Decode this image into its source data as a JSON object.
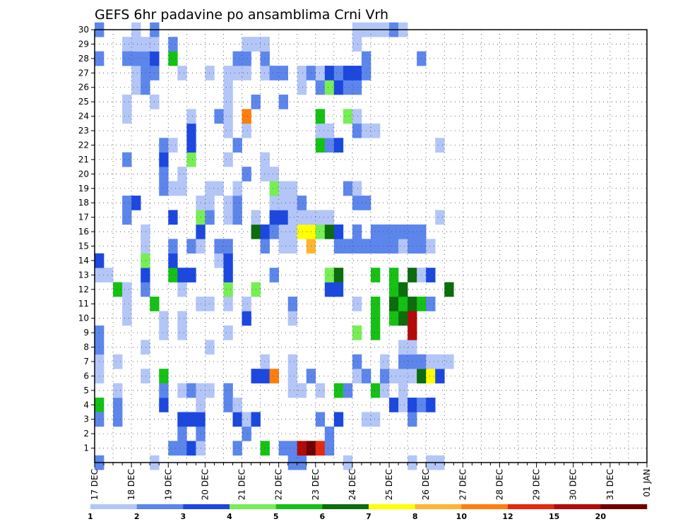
{
  "chart_data": {
    "type": "heatmap",
    "title": "GEFS 6hr padavine po ansamblima Crni Vrh",
    "xlabel": "",
    "ylabel": "",
    "x_tick_labels": [
      "17 DEC",
      "18 DEC",
      "19 DEC",
      "20 DEC",
      "21 DEC",
      "22 DEC",
      "23 DEC",
      "24 DEC",
      "25 DEC",
      "26 DEC",
      "27 DEC",
      "28 DEC",
      "29 DEC",
      "30 DEC",
      "31 DEC",
      "01 JAN"
    ],
    "y_tick_labels": [
      "1",
      "2",
      "3",
      "4",
      "5",
      "6",
      "7",
      "8",
      "9",
      "10",
      "11",
      "12",
      "13",
      "14",
      "15",
      "16",
      "17",
      "18",
      "19",
      "20",
      "21",
      "22",
      "23",
      "24",
      "25",
      "26",
      "27",
      "28",
      "29",
      "30"
    ],
    "time_steps_per_day": 4,
    "ensemble_range": [
      0,
      30
    ],
    "grid": true,
    "colorbar": {
      "levels": [
        "1",
        "2",
        "3",
        "4",
        "5",
        "6",
        "7",
        "8",
        "10",
        "12",
        "15",
        "20"
      ],
      "colors": [
        "#b3c6f7",
        "#5c86ec",
        "#1c48e0",
        "#77ee55",
        "#14c114",
        "#0b6d0b",
        "#ffff00",
        "#ffb432",
        "#ff7d0e",
        "#e6280f",
        "#b40a0a",
        "#6e0000"
      ]
    },
    "cells": [
      [
        0,
        30,
        1
      ],
      [
        6,
        11,
        4
      ],
      [
        0,
        7,
        0
      ],
      [
        0,
        4,
        4
      ],
      [
        0,
        13,
        0
      ],
      [
        0,
        14,
        2
      ],
      [
        0,
        28,
        1
      ],
      [
        0,
        3,
        1
      ],
      [
        0,
        0,
        1
      ],
      [
        0,
        6,
        0
      ],
      [
        0,
        8,
        1
      ],
      [
        0,
        9,
        1
      ],
      [
        1,
        13,
        0
      ],
      [
        2,
        3,
        1
      ],
      [
        2,
        4,
        1
      ],
      [
        2,
        5,
        0
      ],
      [
        2,
        7,
        0
      ],
      [
        2,
        12,
        4
      ],
      [
        3,
        10,
        0
      ],
      [
        3,
        11,
        0
      ],
      [
        3,
        12,
        0
      ],
      [
        3,
        17,
        1
      ],
      [
        3,
        18,
        1
      ],
      [
        3,
        21,
        1
      ],
      [
        3,
        24,
        0
      ],
      [
        3,
        25,
        0
      ],
      [
        3,
        29,
        0
      ],
      [
        3,
        28,
        1
      ],
      [
        4,
        18,
        2
      ],
      [
        4,
        26,
        0
      ],
      [
        4,
        27,
        0
      ],
      [
        4,
        28,
        1
      ],
      [
        4,
        29,
        0
      ],
      [
        4,
        30,
        0
      ],
      [
        5,
        6,
        0
      ],
      [
        5,
        8,
        0
      ],
      [
        5,
        12,
        1
      ],
      [
        5,
        13,
        2
      ],
      [
        5,
        14,
        3
      ],
      [
        5,
        15,
        0
      ],
      [
        5,
        16,
        0
      ],
      [
        5,
        26,
        1
      ],
      [
        5,
        27,
        1
      ],
      [
        5,
        28,
        1
      ],
      [
        5,
        29,
        0
      ],
      [
        6,
        0,
        0
      ],
      [
        6,
        25,
        0
      ],
      [
        6,
        27,
        1
      ],
      [
        6,
        28,
        2
      ],
      [
        6,
        29,
        0
      ],
      [
        6,
        30,
        1
      ],
      [
        7,
        4,
        2
      ],
      [
        7,
        5,
        1
      ],
      [
        7,
        6,
        4
      ],
      [
        7,
        9,
        0
      ],
      [
        7,
        10,
        0
      ],
      [
        7,
        19,
        1
      ],
      [
        7,
        20,
        1
      ],
      [
        7,
        21,
        2
      ],
      [
        7,
        22,
        1
      ],
      [
        8,
        1,
        1
      ],
      [
        8,
        13,
        4
      ],
      [
        8,
        14,
        2
      ],
      [
        8,
        15,
        1
      ],
      [
        8,
        17,
        2
      ],
      [
        8,
        19,
        0
      ],
      [
        8,
        22,
        0
      ],
      [
        8,
        28,
        4
      ],
      [
        8,
        29,
        1
      ],
      [
        9,
        1,
        1
      ],
      [
        9,
        2,
        1
      ],
      [
        9,
        3,
        2
      ],
      [
        9,
        5,
        0
      ],
      [
        9,
        9,
        0
      ],
      [
        9,
        10,
        0
      ],
      [
        9,
        12,
        0
      ],
      [
        9,
        13,
        2
      ],
      [
        9,
        19,
        0
      ],
      [
        9,
        20,
        0
      ],
      [
        9,
        27,
        0
      ],
      [
        10,
        1,
        2
      ],
      [
        10,
        3,
        2
      ],
      [
        10,
        5,
        1
      ],
      [
        10,
        13,
        2
      ],
      [
        10,
        15,
        1
      ],
      [
        10,
        21,
        3
      ],
      [
        10,
        22,
        2
      ],
      [
        10,
        23,
        2
      ],
      [
        10,
        24,
        0
      ],
      [
        11,
        1,
        0
      ],
      [
        11,
        2,
        1
      ],
      [
        11,
        3,
        2
      ],
      [
        11,
        4,
        0
      ],
      [
        11,
        5,
        0
      ],
      [
        11,
        11,
        0
      ],
      [
        11,
        15,
        0
      ],
      [
        11,
        16,
        2
      ],
      [
        11,
        17,
        3
      ],
      [
        11,
        18,
        0
      ],
      [
        12,
        5,
        0
      ],
      [
        12,
        8,
        0
      ],
      [
        12,
        11,
        0
      ],
      [
        12,
        17,
        1
      ],
      [
        12,
        18,
        0
      ],
      [
        12,
        19,
        0
      ],
      [
        12,
        27,
        0
      ],
      [
        13,
        14,
        0
      ],
      [
        13,
        15,
        1
      ],
      [
        13,
        19,
        0
      ],
      [
        13,
        24,
        1
      ],
      [
        14,
        4,
        1
      ],
      [
        14,
        5,
        1
      ],
      [
        14,
        9,
        0
      ],
      [
        14,
        11,
        0
      ],
      [
        14,
        12,
        3
      ],
      [
        14,
        13,
        2
      ],
      [
        14,
        14,
        2
      ],
      [
        14,
        15,
        1
      ],
      [
        14,
        17,
        0
      ],
      [
        14,
        18,
        0
      ],
      [
        14,
        21,
        0
      ],
      [
        14,
        23,
        0
      ],
      [
        14,
        24,
        0
      ],
      [
        14,
        25,
        0
      ],
      [
        14,
        26,
        0
      ],
      [
        14,
        27,
        0
      ],
      [
        15,
        1,
        1
      ],
      [
        15,
        3,
        2
      ],
      [
        15,
        4,
        0
      ],
      [
        15,
        17,
        1
      ],
      [
        15,
        18,
        1
      ],
      [
        15,
        19,
        0
      ],
      [
        15,
        22,
        1
      ],
      [
        15,
        27,
        0
      ],
      [
        15,
        28,
        1
      ],
      [
        16,
        2,
        1
      ],
      [
        16,
        3,
        0
      ],
      [
        16,
        10,
        2
      ],
      [
        16,
        11,
        0
      ],
      [
        16,
        20,
        1
      ],
      [
        16,
        23,
        0
      ],
      [
        16,
        24,
        8
      ],
      [
        16,
        27,
        0
      ],
      [
        16,
        28,
        1
      ],
      [
        16,
        29,
        0
      ],
      [
        17,
        3,
        2
      ],
      [
        17,
        6,
        2
      ],
      [
        17,
        12,
        3
      ],
      [
        17,
        16,
        5
      ],
      [
        17,
        17,
        0
      ],
      [
        17,
        25,
        1
      ],
      [
        17,
        29,
        0
      ],
      [
        18,
        1,
        4
      ],
      [
        18,
        6,
        2
      ],
      [
        18,
        7,
        0
      ],
      [
        18,
        15,
        1
      ],
      [
        18,
        16,
        2
      ],
      [
        18,
        20,
        0
      ],
      [
        18,
        21,
        0
      ],
      [
        18,
        27,
        0
      ],
      [
        18,
        28,
        1
      ],
      [
        18,
        29,
        0
      ],
      [
        19,
        6,
        8
      ],
      [
        19,
        13,
        1
      ],
      [
        19,
        16,
        1
      ],
      [
        19,
        17,
        2
      ],
      [
        19,
        18,
        0
      ],
      [
        19,
        19,
        3
      ],
      [
        19,
        20,
        0
      ],
      [
        19,
        27,
        1
      ],
      [
        20,
        1,
        1
      ],
      [
        20,
        15,
        0
      ],
      [
        20,
        16,
        0
      ],
      [
        20,
        17,
        2
      ],
      [
        20,
        18,
        0
      ],
      [
        20,
        19,
        0
      ],
      [
        20,
        25,
        1
      ],
      [
        20,
        27,
        1
      ],
      [
        21,
        0,
        1
      ],
      [
        21,
        1,
        1
      ],
      [
        21,
        5,
        0
      ],
      [
        21,
        6,
        0
      ],
      [
        21,
        7,
        0
      ],
      [
        21,
        10,
        0
      ],
      [
        21,
        11,
        1
      ],
      [
        21,
        15,
        0
      ],
      [
        21,
        16,
        0
      ],
      [
        21,
        17,
        0
      ],
      [
        21,
        18,
        0
      ],
      [
        21,
        19,
        0
      ],
      [
        22,
        0,
        1
      ],
      [
        22,
        1,
        10
      ],
      [
        22,
        5,
        0
      ],
      [
        22,
        16,
        6
      ],
      [
        22,
        17,
        0
      ],
      [
        22,
        18,
        1
      ],
      [
        22,
        26,
        0
      ],
      [
        22,
        27,
        0
      ],
      [
        23,
        1,
        11
      ],
      [
        23,
        6,
        1
      ],
      [
        23,
        15,
        7
      ],
      [
        23,
        16,
        6
      ],
      [
        23,
        17,
        0
      ],
      [
        23,
        27,
        1
      ],
      [
        24,
        1,
        9
      ],
      [
        24,
        3,
        1
      ],
      [
        24,
        5,
        0
      ],
      [
        24,
        16,
        3
      ],
      [
        24,
        17,
        0
      ],
      [
        24,
        22,
        4
      ],
      [
        24,
        23,
        0
      ],
      [
        24,
        24,
        4
      ],
      [
        24,
        26,
        1
      ],
      [
        24,
        27,
        0
      ],
      [
        25,
        1,
        1
      ],
      [
        25,
        2,
        1
      ],
      [
        25,
        12,
        2
      ],
      [
        25,
        13,
        3
      ],
      [
        25,
        16,
        5
      ],
      [
        25,
        17,
        0
      ],
      [
        25,
        22,
        1
      ],
      [
        25,
        23,
        0
      ],
      [
        25,
        26,
        3
      ],
      [
        25,
        27,
        2
      ],
      [
        26,
        3,
        2
      ],
      [
        26,
        5,
        4
      ],
      [
        26,
        12,
        2
      ],
      [
        26,
        13,
        5
      ],
      [
        26,
        15,
        1
      ],
      [
        26,
        16,
        2
      ],
      [
        26,
        22,
        2
      ],
      [
        26,
        26,
        2
      ],
      [
        26,
        27,
        1
      ],
      [
        27,
        0,
        0
      ],
      [
        27,
        5,
        1
      ],
      [
        27,
        15,
        1
      ],
      [
        27,
        19,
        1
      ],
      [
        27,
        24,
        3
      ],
      [
        27,
        26,
        1
      ],
      [
        27,
        27,
        2
      ],
      [
        28,
        6,
        0
      ],
      [
        28,
        7,
        1
      ],
      [
        28,
        9,
        3
      ],
      [
        28,
        11,
        0
      ],
      [
        28,
        15,
        1
      ],
      [
        28,
        16,
        1
      ],
      [
        28,
        18,
        1
      ],
      [
        28,
        19,
        0
      ],
      [
        28,
        23,
        1
      ],
      [
        28,
        24,
        0
      ],
      [
        28,
        26,
        1
      ],
      [
        28,
        27,
        2
      ],
      [
        28,
        29,
        0
      ],
      [
        28,
        30,
        0
      ],
      [
        29,
        3,
        0
      ],
      [
        29,
        6,
        1
      ],
      [
        29,
        15,
        1
      ],
      [
        29,
        18,
        1
      ],
      [
        29,
        23,
        0
      ],
      [
        29,
        27,
        1
      ],
      [
        29,
        28,
        1
      ],
      [
        29,
        30,
        0
      ],
      [
        30,
        3,
        0
      ],
      [
        30,
        5,
        4
      ],
      [
        30,
        9,
        4
      ],
      [
        30,
        10,
        4
      ],
      [
        30,
        11,
        4
      ],
      [
        30,
        13,
        4
      ],
      [
        30,
        15,
        1
      ],
      [
        30,
        16,
        1
      ],
      [
        30,
        23,
        0
      ],
      [
        30,
        30,
        0
      ],
      [
        31,
        5,
        0
      ],
      [
        31,
        6,
        1
      ],
      [
        31,
        7,
        0
      ],
      [
        31,
        15,
        1
      ],
      [
        31,
        16,
        1
      ],
      [
        31,
        30,
        0
      ],
      [
        32,
        4,
        2
      ],
      [
        32,
        6,
        0
      ],
      [
        32,
        10,
        4
      ],
      [
        32,
        11,
        5
      ],
      [
        32,
        12,
        4
      ],
      [
        32,
        13,
        4
      ],
      [
        32,
        15,
        1
      ],
      [
        32,
        16,
        1
      ],
      [
        32,
        30,
        1
      ],
      [
        33,
        4,
        0
      ],
      [
        33,
        5,
        0
      ],
      [
        33,
        6,
        0
      ],
      [
        33,
        7,
        1
      ],
      [
        33,
        8,
        0
      ],
      [
        33,
        10,
        5
      ],
      [
        33,
        11,
        4
      ],
      [
        33,
        12,
        5
      ],
      [
        33,
        15,
        0
      ],
      [
        33,
        16,
        1
      ],
      [
        33,
        30,
        0
      ],
      [
        34,
        0,
        0
      ],
      [
        34,
        3,
        1
      ],
      [
        34,
        4,
        2
      ],
      [
        34,
        6,
        0
      ],
      [
        34,
        7,
        1
      ],
      [
        34,
        8,
        0
      ],
      [
        34,
        9,
        10
      ],
      [
        34,
        10,
        10
      ],
      [
        34,
        11,
        5
      ],
      [
        34,
        13,
        5
      ],
      [
        34,
        15,
        1
      ],
      [
        34,
        16,
        1
      ],
      [
        35,
        4,
        1
      ],
      [
        35,
        6,
        5
      ],
      [
        35,
        7,
        1
      ],
      [
        35,
        11,
        4
      ],
      [
        35,
        13,
        0
      ],
      [
        35,
        15,
        1
      ],
      [
        35,
        16,
        1
      ],
      [
        35,
        28,
        1
      ],
      [
        36,
        0,
        0
      ],
      [
        36,
        4,
        2
      ],
      [
        36,
        6,
        6
      ],
      [
        36,
        7,
        0
      ],
      [
        36,
        11,
        1
      ],
      [
        36,
        13,
        2
      ],
      [
        36,
        15,
        0
      ],
      [
        37,
        0,
        0
      ],
      [
        37,
        6,
        2
      ],
      [
        37,
        7,
        0
      ],
      [
        37,
        17,
        0
      ],
      [
        37,
        22,
        0
      ],
      [
        38,
        7,
        0
      ],
      [
        38,
        12,
        5
      ]
    ]
  }
}
